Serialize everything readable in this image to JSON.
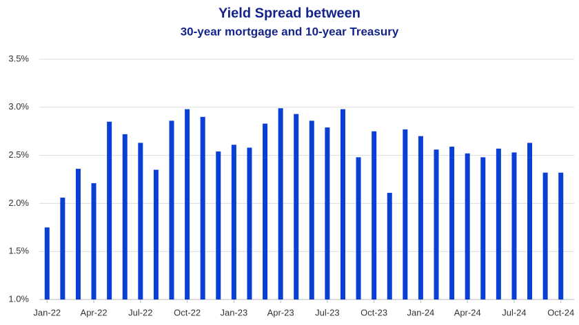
{
  "chart_data": {
    "type": "bar",
    "title": "Yield Spread between",
    "subtitle": "30-year mortgage and 10-year Treasury",
    "categories": [
      "Jan-22",
      null,
      null,
      "Apr-22",
      null,
      null,
      "Jul-22",
      null,
      null,
      "Oct-22",
      null,
      null,
      "Jan-23",
      null,
      null,
      "Apr-23",
      null,
      null,
      "Jul-23",
      null,
      null,
      "Oct-23",
      null,
      null,
      "Jan-24",
      null,
      null,
      "Apr-24",
      null,
      null,
      "Jul-24",
      null,
      null,
      "Oct-24"
    ],
    "values": [
      1.75,
      2.06,
      2.36,
      2.21,
      2.85,
      2.72,
      2.63,
      2.35,
      2.86,
      2.98,
      2.9,
      2.54,
      2.61,
      2.58,
      2.83,
      2.99,
      2.93,
      2.86,
      2.79,
      2.98,
      2.48,
      2.75,
      2.11,
      2.77,
      2.7,
      2.56,
      2.59,
      2.52,
      2.48,
      2.57,
      2.53,
      2.63,
      2.32,
      2.32
    ],
    "color": "#0a3fd6",
    "ylim": [
      1.0,
      3.5
    ],
    "yticks": [
      {
        "value": 1.0,
        "label": "1.0%"
      },
      {
        "value": 1.5,
        "label": "1.5%"
      },
      {
        "value": 2.0,
        "label": "2.0%"
      },
      {
        "value": 2.5,
        "label": "2.5%"
      },
      {
        "value": 3.0,
        "label": "3.0%"
      },
      {
        "value": 3.5,
        "label": "3.5%"
      }
    ],
    "grid": true
  }
}
